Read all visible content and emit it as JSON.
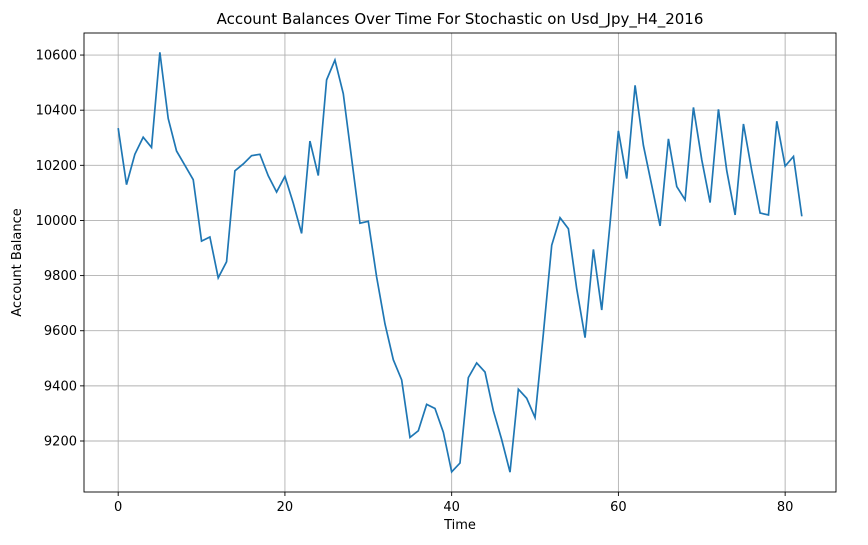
{
  "chart_data": {
    "type": "line",
    "title": "Account Balances Over Time For Stochastic on Usd_Jpy_H4_2016",
    "xlabel": "Time",
    "ylabel": "Account Balance",
    "xlim": [
      -4.1,
      86.1
    ],
    "ylim": [
      9015,
      10680
    ],
    "xticks": [
      0,
      20,
      40,
      60,
      80
    ],
    "yticks": [
      9200,
      9400,
      9600,
      9800,
      10000,
      10200,
      10400,
      10600
    ],
    "grid": true,
    "line_color": "#1f77b4",
    "series": [
      {
        "x": [
          0,
          1,
          2,
          3,
          4,
          5,
          6,
          7,
          8,
          9,
          10,
          11,
          12,
          13,
          14,
          15,
          16,
          17,
          18,
          19,
          20,
          21,
          22,
          23,
          24,
          25,
          26,
          27,
          28,
          29,
          30,
          31,
          32,
          33,
          34,
          35,
          36,
          37,
          38,
          39,
          40,
          41,
          42,
          43,
          44,
          45,
          46,
          47,
          48,
          49,
          50,
          51,
          52,
          53,
          54,
          55,
          56,
          57,
          58,
          59,
          60,
          61,
          62,
          63,
          64,
          65,
          66,
          67,
          68,
          69,
          70,
          71,
          72,
          73,
          74,
          75,
          76,
          77,
          78,
          79,
          80,
          81,
          82
        ],
        "values": [
          10335,
          10130,
          10240,
          10302,
          10265,
          10610,
          10370,
          10252,
          10200,
          10148,
          9925,
          9940,
          9792,
          9850,
          10180,
          10205,
          10235,
          10240,
          10162,
          10103,
          10160,
          10063,
          9953,
          10288,
          10163,
          10510,
          10582,
          10460,
          10225,
          9990,
          9997,
          9795,
          9625,
          9495,
          9422,
          9213,
          9237,
          9333,
          9318,
          9232,
          9088,
          9120,
          9430,
          9483,
          9450,
          9310,
          9205,
          9087,
          9388,
          9355,
          9285,
          9590,
          9910,
          10010,
          9970,
          9752,
          9575,
          9895,
          9675,
          9990,
          10325,
          10152,
          10490,
          10272,
          10127,
          9980,
          10296,
          10123,
          10075,
          10410,
          10220,
          10065,
          10403,
          10180,
          10020,
          10350,
          10180,
          10027,
          10020,
          10360,
          10197,
          10232,
          10015
        ]
      }
    ]
  }
}
